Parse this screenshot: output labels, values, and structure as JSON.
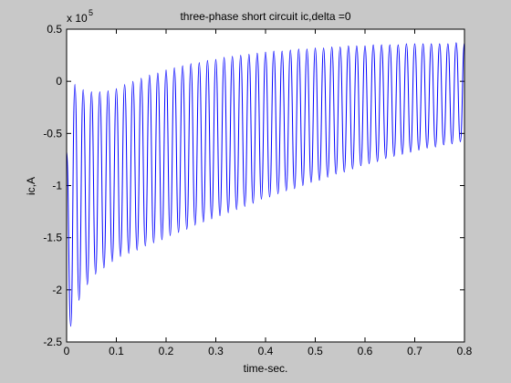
{
  "chart_data": {
    "type": "line",
    "title": "three-phase short circuit ic,delta =0",
    "x_label": "time-sec.",
    "y_label": "ic,A",
    "y_multiplier": "x 10",
    "y_multiplier_exponent": "5",
    "color": "#0000ff",
    "grid": false,
    "xlim": [
      0,
      0.8
    ],
    "ylim": [
      -2.5,
      0.5
    ],
    "xticks": [
      0,
      0.1,
      0.2,
      0.3,
      0.4,
      0.5,
      0.6,
      0.7,
      0.8
    ],
    "yticks": [
      -2.5,
      -2,
      -1.5,
      -1,
      -0.5,
      0,
      0.5
    ],
    "x": [
      0,
      0.0083,
      0.0167,
      0.025,
      0.0333,
      0.0417,
      0.05,
      0.0583,
      0.0667,
      0.075,
      0.0833,
      0.0917,
      0.1,
      0.1083,
      0.1167,
      0.125,
      0.1333,
      0.1417,
      0.15,
      0.1583,
      0.1667,
      0.175,
      0.1833,
      0.1917,
      0.2,
      0.2083,
      0.2167,
      0.225,
      0.2333,
      0.2417,
      0.25,
      0.2583,
      0.2667,
      0.275,
      0.2833,
      0.2917,
      0.3,
      0.3083,
      0.3167,
      0.325,
      0.3333,
      0.3417,
      0.35,
      0.3583,
      0.3667,
      0.375,
      0.3833,
      0.3917,
      0.4,
      0.4083,
      0.4167,
      0.425,
      0.4333,
      0.4417,
      0.45,
      0.4583,
      0.4667,
      0.475,
      0.4833,
      0.4917,
      0.5,
      0.5083,
      0.5167,
      0.525,
      0.5333,
      0.5417,
      0.55,
      0.5583,
      0.5667,
      0.575,
      0.5833,
      0.5917,
      0.6,
      0.6083,
      0.6167,
      0.625,
      0.6333,
      0.6417,
      0.65,
      0.6583,
      0.6667,
      0.675,
      0.6833,
      0.6917,
      0.7,
      0.7083,
      0.7167,
      0.725,
      0.7333,
      0.7417,
      0.75,
      0.7583,
      0.7667,
      0.775,
      0.7833,
      0.7917,
      0.8
    ],
    "values": [
      -0.67,
      -2.35,
      -0.03,
      -2.1,
      -0.08,
      -1.95,
      -0.1,
      -1.85,
      -0.1,
      -1.79,
      -0.09,
      -1.73,
      -0.07,
      -1.68,
      -0.03,
      -1.65,
      0.0,
      -1.62,
      0.03,
      -1.58,
      0.06,
      -1.55,
      0.08,
      -1.52,
      0.11,
      -1.48,
      0.13,
      -1.45,
      0.15,
      -1.42,
      0.17,
      -1.38,
      0.18,
      -1.35,
      0.2,
      -1.32,
      0.21,
      -1.29,
      0.23,
      -1.26,
      0.24,
      -1.23,
      0.25,
      -1.2,
      0.26,
      -1.17,
      0.27,
      -1.13,
      0.28,
      -1.11,
      0.29,
      -1.08,
      0.29,
      -1.05,
      0.3,
      -1.03,
      0.31,
      -1.0,
      0.31,
      -0.97,
      0.32,
      -0.95,
      0.32,
      -0.92,
      0.33,
      -0.89,
      0.33,
      -0.87,
      0.34,
      -0.84,
      0.34,
      -0.81,
      0.34,
      -0.79,
      0.35,
      -0.77,
      0.35,
      -0.74,
      0.35,
      -0.72,
      0.35,
      -0.7,
      0.36,
      -0.68,
      0.36,
      -0.66,
      0.36,
      -0.64,
      0.36,
      -0.63,
      0.36,
      -0.61,
      0.36,
      -0.6,
      0.37,
      -0.58,
      0.37
    ]
  }
}
